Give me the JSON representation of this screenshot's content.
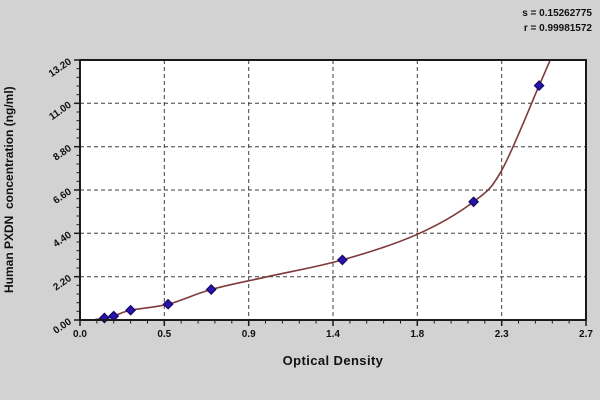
{
  "figure": {
    "background": "#d2d2d2",
    "plot_bg": "#ffffff",
    "axis_color": "#1a1a1a",
    "grid_color": "#3f3f3f",
    "tick_label_color": "#111111"
  },
  "chart_data": {
    "type": "scatter",
    "title": "",
    "xlabel": "Optical Density",
    "ylabel": "Human PXDN  concentration (ng/ml)",
    "xlim": [
      0,
      2.7
    ],
    "ylim": [
      0,
      13.2
    ],
    "grid": "dashed",
    "legend_position": "none",
    "x_ticks": {
      "values": [
        0,
        0.45,
        0.9,
        1.35,
        1.8,
        2.25,
        2.7
      ],
      "labels": [
        "0.0",
        "0.5",
        "0.9",
        "1.4",
        "1.8",
        "2.3",
        "2.7"
      ]
    },
    "y_ticks": {
      "values": [
        0,
        2.2,
        4.4,
        6.6,
        8.8,
        11,
        13.2
      ],
      "labels": [
        "0.00",
        "2.20",
        "4.40",
        "6.60",
        "8.80",
        "11.00",
        "13.20"
      ]
    },
    "x_minor_step": 0.09,
    "y_minor_step": 0.44,
    "series": [
      {
        "name": "standard-points",
        "type": "scatter",
        "marker": "diamond",
        "color": "#2a13ae",
        "edge_color": "#120861",
        "points": [
          [
            0.13,
            0.1
          ],
          [
            0.18,
            0.2
          ],
          [
            0.27,
            0.5
          ],
          [
            0.47,
            0.8
          ],
          [
            0.7,
            1.55
          ],
          [
            1.4,
            3.05
          ],
          [
            2.1,
            6.0
          ],
          [
            2.45,
            11.9
          ]
        ]
      },
      {
        "name": "fitted-curve",
        "type": "line",
        "color": "#7e3a3a",
        "points": [
          [
            0.08,
            0.02
          ],
          [
            0.13,
            0.1
          ],
          [
            0.18,
            0.2
          ],
          [
            0.27,
            0.5
          ],
          [
            0.47,
            0.8
          ],
          [
            0.7,
            1.55
          ],
          [
            1.0,
            2.2
          ],
          [
            1.4,
            3.05
          ],
          [
            1.8,
            4.35
          ],
          [
            2.1,
            6.0
          ],
          [
            2.25,
            7.6
          ],
          [
            2.45,
            11.9
          ],
          [
            2.52,
            13.45
          ]
        ]
      }
    ],
    "annotations": [
      "s = 0.15262775",
      "r = 0.99981572"
    ]
  }
}
